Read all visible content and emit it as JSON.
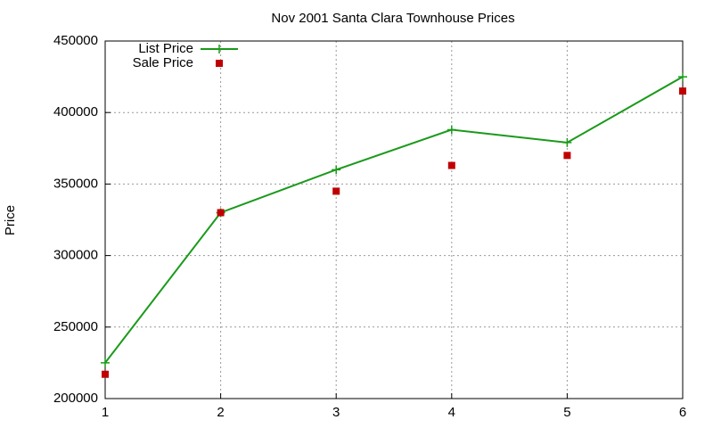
{
  "chart_data": {
    "type": "line",
    "title": "Nov 2001 Santa Clara Townhouse Prices",
    "y_label": "Price",
    "x": [
      1,
      2,
      3,
      4,
      5,
      6
    ],
    "series": [
      {
        "name": "List Price",
        "color": "#1a9a1a",
        "line": true,
        "marker": "plus",
        "values": [
          225000,
          330000,
          360000,
          388000,
          379000,
          425000
        ]
      },
      {
        "name": "Sale Price",
        "color": "#c00000",
        "line": false,
        "marker": "square",
        "values": [
          217000,
          330000,
          345000,
          363000,
          370000,
          415000
        ]
      }
    ],
    "xlim": [
      1,
      6
    ],
    "xticks": [
      1,
      2,
      3,
      4,
      5,
      6
    ],
    "ylim": [
      200000,
      450000
    ],
    "yticks": [
      200000,
      250000,
      300000,
      350000,
      400000,
      450000
    ],
    "grid": true,
    "legend": "top-left"
  }
}
